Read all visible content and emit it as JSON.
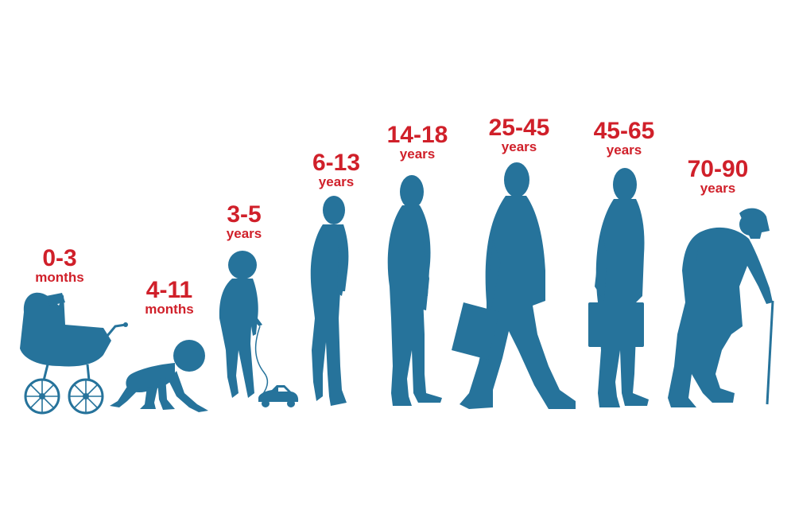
{
  "colors": {
    "figure": "#26739b",
    "label": "#d0202a",
    "background": "#ffffff"
  },
  "stages": [
    {
      "range": "0-3",
      "unit": "months",
      "figure": "baby-carriage"
    },
    {
      "range": "4-11",
      "unit": "months",
      "figure": "crawling-baby"
    },
    {
      "range": "3-5",
      "unit": "years",
      "figure": "toddler-with-toy-car"
    },
    {
      "range": "6-13",
      "unit": "years",
      "figure": "child"
    },
    {
      "range": "14-18",
      "unit": "years",
      "figure": "teenager"
    },
    {
      "range": "25-45",
      "unit": "years",
      "figure": "walking-man-with-briefcase"
    },
    {
      "range": "45-65",
      "unit": "years",
      "figure": "man-with-briefcase"
    },
    {
      "range": "70-90",
      "unit": "years",
      "figure": "elderly-man-with-cane"
    }
  ]
}
